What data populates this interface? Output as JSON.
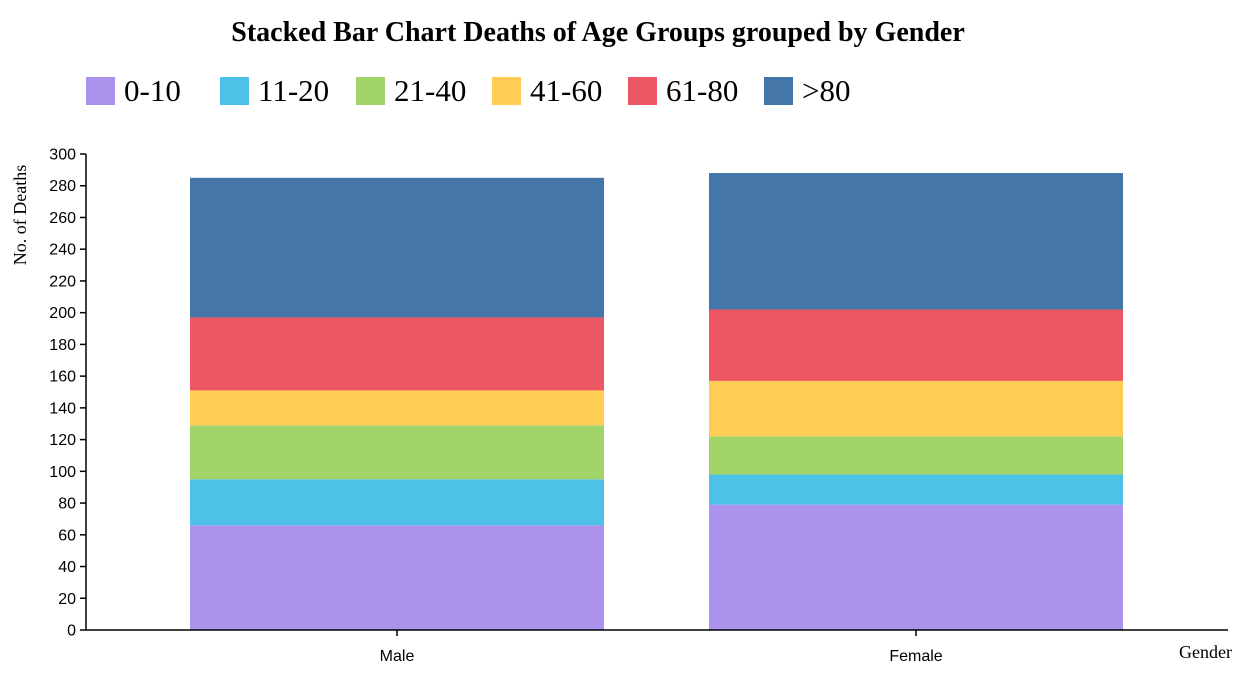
{
  "chart_data": {
    "type": "bar",
    "stacked": true,
    "title": "Stacked Bar Chart Deaths of Age Groups grouped by Gender",
    "xlabel": "Gender",
    "ylabel": "No. of Deaths",
    "categories": [
      "Male",
      "Female"
    ],
    "ylim": [
      0,
      300
    ],
    "yticks": [
      0,
      20,
      40,
      60,
      80,
      100,
      120,
      140,
      160,
      180,
      200,
      220,
      240,
      260,
      280,
      300
    ],
    "legend_position": "top",
    "series": [
      {
        "name": "0-10",
        "color": "#ab93ed",
        "values": [
          66,
          79
        ]
      },
      {
        "name": "11-20",
        "color": "#4ec1e8",
        "values": [
          29,
          19
        ]
      },
      {
        "name": "21-40",
        "color": "#a1d56a",
        "values": [
          34,
          24
        ]
      },
      {
        "name": "41-60",
        "color": "#ffcd55",
        "values": [
          22,
          35
        ]
      },
      {
        "name": "61-80",
        "color": "#ed5665",
        "values": [
          46,
          45
        ]
      },
      {
        "name": ">80",
        "color": "#4476a9",
        "values": [
          88,
          86
        ]
      }
    ]
  }
}
